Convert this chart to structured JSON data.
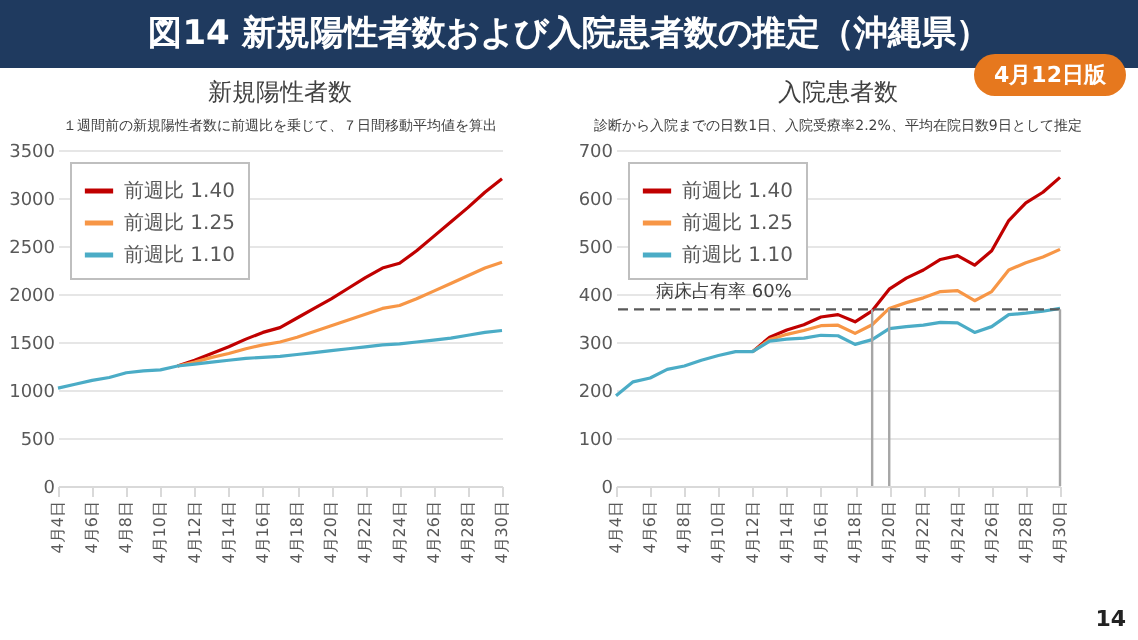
{
  "chart_data": [
    {
      "type": "line",
      "title": "新規陽性者数",
      "subtitle": "１週間前の新規陽性者数に前週比を乗じて、７日間移動平均値を算出",
      "annotations": [
        "図14 新規陽性者数および入院患者数の推定（沖縄県）",
        "4月12日版"
      ],
      "x": [
        "--04-04",
        "--04-05",
        "--04-06",
        "--04-07",
        "--04-08",
        "--04-09",
        "--04-10",
        "--04-11",
        "--04-12",
        "--04-13",
        "--04-14",
        "--04-15",
        "--04-16",
        "--04-17",
        "--04-18",
        "--04-19",
        "--04-20",
        "--04-21",
        "--04-22",
        "--04-23",
        "--04-24",
        "--04-25",
        "--04-26",
        "--04-27",
        "--04-28",
        "--04-29",
        "--04-30"
      ],
      "series": [
        {
          "name": "前週比 1.40",
          "color": "#c00000",
          "values": [
            null,
            null,
            null,
            null,
            null,
            null,
            null,
            1250,
            1310,
            1380,
            1450,
            1530,
            1600,
            1650,
            1750,
            1850,
            1950,
            2060,
            2170,
            2270,
            2320,
            2450,
            2600,
            2750,
            2900,
            3060,
            3200
          ]
        },
        {
          "name": "前週比 1.25",
          "color": "#f79646",
          "values": [
            null,
            null,
            null,
            null,
            null,
            null,
            null,
            1250,
            1290,
            1340,
            1380,
            1430,
            1470,
            1500,
            1550,
            1610,
            1670,
            1730,
            1790,
            1850,
            1880,
            1950,
            2030,
            2110,
            2190,
            2270,
            2330
          ]
        },
        {
          "name": "前週比 1.10",
          "color": "#4bacc6",
          "values": [
            1020,
            1060,
            1100,
            1130,
            1180,
            1200,
            1210,
            1250,
            1270,
            1290,
            1310,
            1330,
            1340,
            1350,
            1370,
            1390,
            1410,
            1430,
            1450,
            1470,
            1480,
            1500,
            1520,
            1540,
            1570,
            1600,
            1620
          ]
        }
      ],
      "xlim": [
        "--04-04",
        "--04-30"
      ],
      "xticks": [
        {
          "value": "--04-04",
          "label": "4月4日"
        },
        {
          "value": "--04-06",
          "label": "4月6日"
        },
        {
          "value": "--04-08",
          "label": "4月8日"
        },
        {
          "value": "--04-10",
          "label": "4月10日"
        },
        {
          "value": "--04-12",
          "label": "4月12日"
        },
        {
          "value": "--04-14",
          "label": "4月14日"
        },
        {
          "value": "--04-16",
          "label": "4月16日"
        },
        {
          "value": "--04-18",
          "label": "4月18日"
        },
        {
          "value": "--04-20",
          "label": "4月20日"
        },
        {
          "value": "--04-22",
          "label": "4月22日"
        },
        {
          "value": "--04-24",
          "label": "4月24日"
        },
        {
          "value": "--04-26",
          "label": "4月26日"
        },
        {
          "value": "--04-28",
          "label": "4月28日"
        },
        {
          "value": "--04-30",
          "label": "4月30日"
        }
      ],
      "ylim": [
        0,
        3500
      ],
      "yticks": [
        0,
        500,
        1000,
        1500,
        2000,
        2500,
        3000,
        3500
      ],
      "grid": "y",
      "legend": "top left",
      "line_style": "solid"
    },
    {
      "type": "line",
      "title": "入院患者数",
      "subtitle": "診断から入院までの日数1日、入院受療率2.2%、平均在院日数9日として推定",
      "annotations": [
        "14"
      ],
      "x": [
        "--04-04",
        "--04-05",
        "--04-06",
        "--04-07",
        "--04-08",
        "--04-09",
        "--04-10",
        "--04-11",
        "--04-12",
        "--04-13",
        "--04-14",
        "--04-15",
        "--04-16",
        "--04-17",
        "--04-18",
        "--04-19",
        "--04-20",
        "--04-21",
        "--04-22",
        "--04-23",
        "--04-24",
        "--04-25",
        "--04-26",
        "--04-27",
        "--04-28",
        "--04-29",
        "--04-30"
      ],
      "series": [
        {
          "name": "前週比 1.40",
          "color": "#c00000",
          "values": [
            null,
            null,
            null,
            null,
            null,
            null,
            null,
            null,
            280,
            310,
            325,
            336,
            352,
            357,
            342,
            365,
            410,
            433,
            450,
            472,
            480,
            460,
            490,
            553,
            590,
            612,
            643
          ]
        },
        {
          "name": "前週比 1.25",
          "color": "#f79646",
          "values": [
            null,
            null,
            null,
            null,
            null,
            null,
            null,
            null,
            280,
            305,
            316,
            324,
            334,
            335,
            318,
            336,
            370,
            382,
            392,
            405,
            407,
            386,
            405,
            450,
            465,
            477,
            493
          ]
        },
        {
          "name": "前週比 1.10",
          "color": "#4bacc6",
          "values": [
            188,
            217,
            225,
            243,
            250,
            262,
            272,
            280,
            280,
            302,
            306,
            308,
            314,
            313,
            295,
            305,
            328,
            332,
            335,
            341,
            340,
            320,
            332,
            357,
            360,
            364,
            370
          ]
        }
      ],
      "xlim": [
        "--04-04",
        "--04-30"
      ],
      "xticks": [
        {
          "value": "--04-04",
          "label": "4月4日"
        },
        {
          "value": "--04-06",
          "label": "4月6日"
        },
        {
          "value": "--04-08",
          "label": "4月8日"
        },
        {
          "value": "--04-10",
          "label": "4月10日"
        },
        {
          "value": "--04-12",
          "label": "4月12日"
        },
        {
          "value": "--04-14",
          "label": "4月14日"
        },
        {
          "value": "--04-16",
          "label": "4月16日"
        },
        {
          "value": "--04-18",
          "label": "4月18日"
        },
        {
          "value": "--04-20",
          "label": "4月20日"
        },
        {
          "value": "--04-22",
          "label": "4月22日"
        },
        {
          "value": "--04-24",
          "label": "4月24日"
        },
        {
          "value": "--04-26",
          "label": "4月26日"
        },
        {
          "value": "--04-28",
          "label": "4月28日"
        },
        {
          "value": "--04-30",
          "label": "4月30日"
        }
      ],
      "ylim": [
        0,
        700
      ],
      "yticks": [
        0,
        100,
        200,
        300,
        400,
        500,
        600,
        700
      ],
      "ref_lines": [
        {
          "axis": "y",
          "value": 368,
          "label": "病床占有率 60%",
          "color": "#595959",
          "line_style": "dashed"
        },
        {
          "axis": "x",
          "value": "--04-19",
          "label": null,
          "color": "#a6a6a6",
          "line_style": "solid"
        },
        {
          "axis": "x",
          "value": "--04-20",
          "label": null,
          "color": "#a6a6a6",
          "line_style": "solid"
        },
        {
          "axis": "x",
          "value": "--04-30",
          "label": null,
          "color": "#a6a6a6",
          "line_style": "solid"
        }
      ],
      "grid": "y",
      "legend": "top left",
      "line_style": "solid"
    }
  ]
}
